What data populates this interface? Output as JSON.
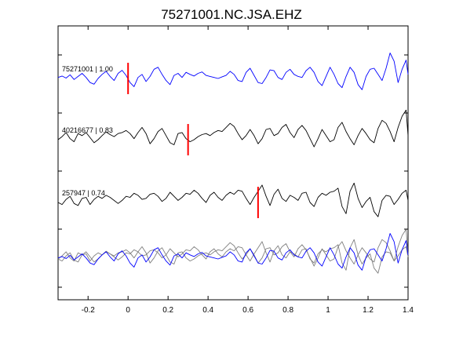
{
  "chart_data": {
    "type": "line",
    "title": "75271001.NC.JSA.EHZ",
    "xlabel": "",
    "ylabel": "",
    "xlim": [
      -0.35,
      1.4
    ],
    "x_ticks": [
      -0.2,
      0,
      0.2,
      0.4,
      0.6,
      0.8,
      1,
      1.2,
      1.4
    ],
    "x_tick_labels": [
      "-0.2",
      "0",
      "0.2",
      "0.4",
      "0.6",
      "0.8",
      "1",
      "1.2",
      "1.4"
    ],
    "grid": false,
    "legend": "none",
    "colors": {
      "primary": "#0000ff",
      "secondary": "#000000",
      "overlay_gray": "#7f7f7f",
      "pick": "#ff0000"
    },
    "traces": [
      {
        "label": "75271001 | 1.00",
        "event_id": "75271001",
        "correlation": 1.0,
        "color": "#0000ff",
        "pick_time": 0.0,
        "x": [
          -0.35,
          -0.33,
          -0.31,
          -0.29,
          -0.27,
          -0.25,
          -0.23,
          -0.21,
          -0.19,
          -0.17,
          -0.15,
          -0.13,
          -0.11,
          -0.09,
          -0.07,
          -0.05,
          -0.03,
          -0.01,
          0.01,
          0.03,
          0.05,
          0.07,
          0.09,
          0.11,
          0.13,
          0.15,
          0.17,
          0.19,
          0.21,
          0.23,
          0.25,
          0.27,
          0.29,
          0.31,
          0.33,
          0.35,
          0.37,
          0.39,
          0.41,
          0.43,
          0.45,
          0.47,
          0.49,
          0.51,
          0.53,
          0.55,
          0.57,
          0.59,
          0.61,
          0.63,
          0.65,
          0.67,
          0.69,
          0.71,
          0.73,
          0.75,
          0.77,
          0.79,
          0.81,
          0.83,
          0.85,
          0.87,
          0.89,
          0.91,
          0.93,
          0.95,
          0.97,
          0.99,
          1.01,
          1.03,
          1.05,
          1.07,
          1.09,
          1.11,
          1.13,
          1.15,
          1.17,
          1.19,
          1.21,
          1.23,
          1.25,
          1.27,
          1.29,
          1.31,
          1.33,
          1.35,
          1.37,
          1.39,
          1.4
        ],
        "y": [
          0.05,
          0.12,
          0.02,
          0.18,
          -0.05,
          0.1,
          0.25,
          0.05,
          -0.2,
          -0.28,
          0.0,
          0.2,
          0.35,
          0.1,
          -0.1,
          0.25,
          0.4,
          0.15,
          -0.2,
          -0.4,
          0.05,
          0.2,
          -0.15,
          0.1,
          0.45,
          0.55,
          0.2,
          -0.1,
          -0.3,
          0.15,
          0.25,
          0.05,
          0.3,
          0.2,
          0.12,
          0.25,
          0.32,
          0.15,
          0.1,
          0.05,
          0.0,
          0.08,
          0.15,
          0.35,
          0.2,
          -0.1,
          -0.15,
          0.3,
          0.5,
          0.15,
          -0.2,
          -0.25,
          0.05,
          0.42,
          0.38,
          0.05,
          -0.05,
          0.3,
          0.45,
          0.2,
          0.1,
          0.05,
          0.38,
          0.55,
          0.3,
          -0.15,
          -0.35,
          0.1,
          0.55,
          0.2,
          -0.25,
          -0.45,
          0.1,
          0.55,
          0.3,
          -0.3,
          -0.55,
          0.1,
          0.45,
          0.5,
          0.2,
          -0.1,
          0.5,
          1.25,
          0.85,
          -0.2,
          0.45,
          0.9,
          0.2
        ]
      },
      {
        "label": "40216677 | 0.83",
        "event_id": "40216677",
        "correlation": 0.83,
        "color": "#000000",
        "pick_time": 0.3,
        "x": [
          -0.35,
          -0.33,
          -0.31,
          -0.29,
          -0.27,
          -0.25,
          -0.23,
          -0.21,
          -0.19,
          -0.17,
          -0.15,
          -0.13,
          -0.11,
          -0.09,
          -0.07,
          -0.05,
          -0.03,
          -0.01,
          0.01,
          0.03,
          0.05,
          0.07,
          0.09,
          0.11,
          0.13,
          0.15,
          0.17,
          0.19,
          0.21,
          0.23,
          0.25,
          0.27,
          0.29,
          0.31,
          0.33,
          0.35,
          0.37,
          0.39,
          0.41,
          0.43,
          0.45,
          0.47,
          0.49,
          0.51,
          0.53,
          0.55,
          0.57,
          0.59,
          0.61,
          0.63,
          0.65,
          0.67,
          0.69,
          0.71,
          0.73,
          0.75,
          0.77,
          0.79,
          0.81,
          0.83,
          0.85,
          0.87,
          0.89,
          0.91,
          0.93,
          0.95,
          0.97,
          0.99,
          1.01,
          1.03,
          1.05,
          1.07,
          1.09,
          1.11,
          1.13,
          1.15,
          1.17,
          1.19,
          1.21,
          1.23,
          1.25,
          1.27,
          1.29,
          1.31,
          1.33,
          1.35,
          1.37,
          1.39,
          1.4
        ],
        "y": [
          0.0,
          0.15,
          0.35,
          0.05,
          -0.1,
          0.3,
          0.2,
          0.35,
          0.1,
          -0.15,
          0.0,
          0.2,
          0.38,
          0.25,
          0.15,
          0.3,
          0.35,
          0.45,
          0.3,
          0.05,
          0.35,
          0.6,
          0.3,
          -0.2,
          0.05,
          0.4,
          0.55,
          0.2,
          -0.15,
          -0.25,
          0.3,
          0.35,
          0.05,
          -0.1,
          0.0,
          0.15,
          0.25,
          0.3,
          0.2,
          0.35,
          0.45,
          0.4,
          0.6,
          0.8,
          0.65,
          0.3,
          0.0,
          0.2,
          0.5,
          0.2,
          -0.2,
          0.05,
          0.5,
          0.55,
          0.2,
          0.3,
          0.6,
          0.75,
          0.35,
          0.1,
          0.5,
          0.7,
          0.45,
          0.05,
          -0.35,
          0.05,
          0.5,
          0.2,
          -0.1,
          0.0,
          0.6,
          0.85,
          0.4,
          0.05,
          -0.25,
          0.2,
          0.55,
          0.3,
          0.0,
          -0.15,
          0.55,
          0.95,
          0.8,
          0.4,
          -0.1,
          0.6,
          1.15,
          1.45,
          0.2
        ]
      },
      {
        "label": "257947 | 0.74",
        "event_id": "257947",
        "correlation": 0.74,
        "color": "#000000",
        "pick_time": 0.65,
        "x": [
          -0.35,
          -0.33,
          -0.31,
          -0.29,
          -0.27,
          -0.25,
          -0.23,
          -0.21,
          -0.19,
          -0.17,
          -0.15,
          -0.13,
          -0.11,
          -0.09,
          -0.07,
          -0.05,
          -0.03,
          -0.01,
          0.01,
          0.03,
          0.05,
          0.07,
          0.09,
          0.11,
          0.13,
          0.15,
          0.17,
          0.19,
          0.21,
          0.23,
          0.25,
          0.27,
          0.29,
          0.31,
          0.33,
          0.35,
          0.37,
          0.39,
          0.41,
          0.43,
          0.45,
          0.47,
          0.49,
          0.51,
          0.53,
          0.55,
          0.57,
          0.59,
          0.61,
          0.63,
          0.65,
          0.67,
          0.69,
          0.71,
          0.73,
          0.75,
          0.77,
          0.79,
          0.81,
          0.83,
          0.85,
          0.87,
          0.89,
          0.91,
          0.93,
          0.95,
          0.97,
          0.99,
          1.01,
          1.03,
          1.05,
          1.07,
          1.09,
          1.11,
          1.13,
          1.15,
          1.17,
          1.19,
          1.21,
          1.23,
          1.25,
          1.27,
          1.29,
          1.31,
          1.33,
          1.35,
          1.37,
          1.39,
          1.4
        ],
        "y": [
          0.0,
          -0.1,
          0.15,
          0.3,
          -0.05,
          -0.15,
          0.2,
          0.25,
          -0.1,
          0.15,
          0.3,
          0.2,
          0.35,
          0.25,
          0.1,
          -0.05,
          0.1,
          0.3,
          0.25,
          0.45,
          0.35,
          0.15,
          0.2,
          0.4,
          0.45,
          0.3,
          0.05,
          0.2,
          0.5,
          0.3,
          0.1,
          0.25,
          0.45,
          0.4,
          0.6,
          0.45,
          0.2,
          0.0,
          0.35,
          0.5,
          0.25,
          0.1,
          0.35,
          0.5,
          0.4,
          0.6,
          0.55,
          0.2,
          -0.1,
          0.25,
          0.55,
          0.85,
          0.3,
          -0.15,
          0.4,
          0.65,
          0.2,
          0.05,
          0.35,
          0.25,
          0.1,
          0.45,
          0.5,
          0.0,
          -0.2,
          0.25,
          0.45,
          0.35,
          0.5,
          0.55,
          0.7,
          -0.2,
          -0.55,
          0.55,
          0.95,
          0.2,
          -0.25,
          0.05,
          0.25,
          -0.45,
          -0.7,
          0.1,
          0.35,
          0.3,
          -0.1,
          0.15,
          0.45,
          0.6,
          0.1
        ]
      }
    ],
    "overlay": {
      "description_free": true,
      "series_indices": [
        0,
        1,
        2
      ]
    }
  }
}
